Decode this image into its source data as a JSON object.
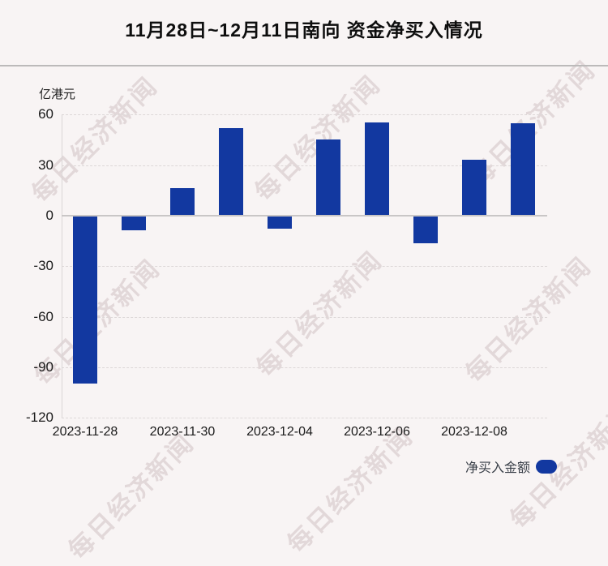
{
  "page": {
    "title": "11月28日~12月11日南向 资金净买入情况",
    "watermark_text": "每日经济新闻"
  },
  "chart_data": {
    "type": "bar",
    "title": "11月28日~12月11日南向 资金净买入情况",
    "ylabel": "亿港元",
    "values": [
      -99.7,
      -8.5,
      16.4,
      52.0,
      -7.7,
      45.2,
      55.4,
      -16.4,
      33.2,
      55.1
    ],
    "x_tick_labels": [
      "2023-11-28",
      "2023-11-30",
      "2023-12-04",
      "2023-12-06",
      "2023-12-08"
    ],
    "x_tick_bar_indices": [
      0,
      2,
      4,
      6,
      8
    ],
    "y_ticks": [
      60,
      30,
      0,
      -30,
      -60,
      -90,
      -120
    ],
    "ylim": [
      -120,
      60
    ],
    "grid": "horizontal-dashed",
    "legend": {
      "label": "净买入金额",
      "position": "bottom-right"
    },
    "bar_color": "#1238a0"
  },
  "colors": {
    "background": "#f8f4f4",
    "bar": "#1238a0",
    "title_text": "#0e0e0e",
    "tick_text": "#1a1a1a",
    "separator": "#bcbaba",
    "zero_line": "#c9c6c6",
    "gridline": "#ddd8d8",
    "watermark": "#c5b2b6"
  }
}
